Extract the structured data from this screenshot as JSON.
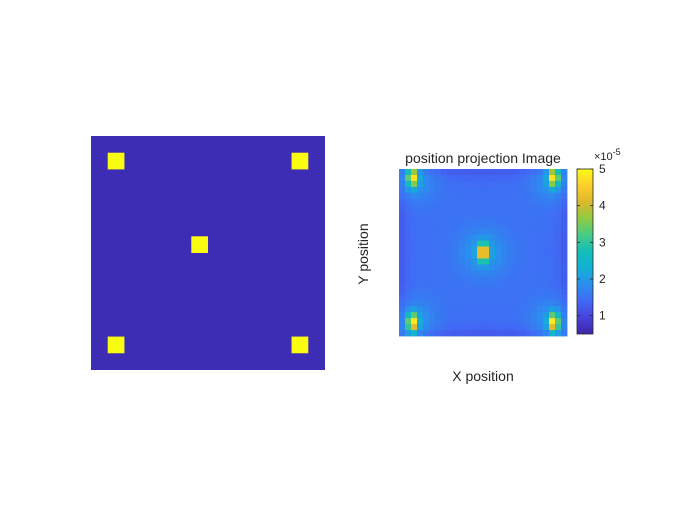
{
  "chart_data": [
    {
      "type": "heatmap",
      "title": "",
      "xlabel": "",
      "ylabel": "",
      "grid": false,
      "axes_visible": false,
      "grid_size": [
        14,
        14
      ],
      "background_value": 0,
      "marker_value": 1,
      "colors": {
        "background": "#3d2db5",
        "marker": "#f9fb10"
      },
      "markers": [
        {
          "row": 1,
          "col": 1
        },
        {
          "row": 1,
          "col": 12
        },
        {
          "row": 6,
          "col": 6
        },
        {
          "row": 12,
          "col": 1
        },
        {
          "row": 12,
          "col": 12
        }
      ]
    },
    {
      "type": "heatmap",
      "title": "position projection Image",
      "xlabel": "X position",
      "ylabel": "Y position",
      "grid": false,
      "colormap": "parula",
      "color_range": [
        0.5,
        5
      ],
      "colorbar": {
        "multiplier": "×10",
        "exponent": "-5",
        "ticks": [
          1,
          2,
          3,
          4,
          5
        ]
      },
      "background_value": 1.5,
      "hot_spots": [
        {
          "x": 0.08,
          "y": 0.05,
          "peak": 4.6
        },
        {
          "x": 0.92,
          "y": 0.05,
          "peak": 4.6
        },
        {
          "x": 0.5,
          "y": 0.5,
          "peak": 5.0
        },
        {
          "x": 0.08,
          "y": 0.92,
          "peak": 4.7
        },
        {
          "x": 0.92,
          "y": 0.92,
          "peak": 4.7
        }
      ]
    }
  ]
}
